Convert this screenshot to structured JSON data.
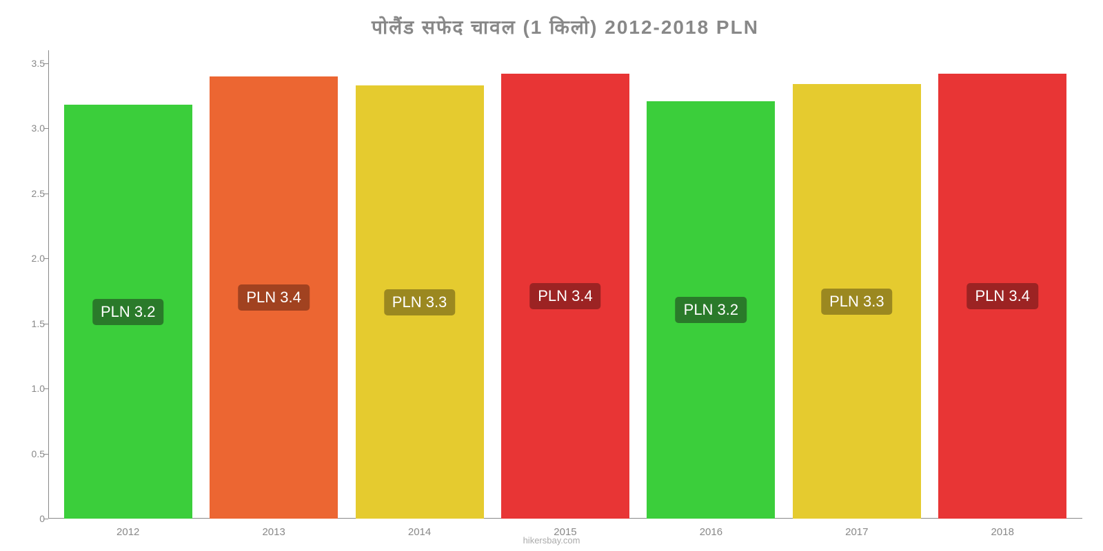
{
  "chart": {
    "type": "bar",
    "title": "पोलैंड सफेद चावल (1 किलो) 2012-2018 PLN",
    "title_color": "#888888",
    "title_fontsize": 28,
    "background_color": "#ffffff",
    "axis_color": "#888888",
    "tick_label_color": "#888888",
    "tick_fontsize": 14,
    "categories": [
      "2012",
      "2013",
      "2014",
      "2015",
      "2016",
      "2017",
      "2018"
    ],
    "values": [
      3.18,
      3.4,
      3.33,
      3.42,
      3.21,
      3.34,
      3.42
    ],
    "bar_labels": [
      "PLN 3.2",
      "PLN 3.4",
      "PLN 3.3",
      "PLN 3.4",
      "PLN 3.2",
      "PLN 3.3",
      "PLN 3.4"
    ],
    "bar_colors": [
      "#3bce3b",
      "#ec6632",
      "#e5cb2f",
      "#e83535",
      "#3bce3b",
      "#e5cb2f",
      "#e83535"
    ],
    "label_bg_colors": [
      "#2a7a2a",
      "#a14220",
      "#9b8820",
      "#9c2323",
      "#2a7a2a",
      "#9b8820",
      "#9c2323"
    ],
    "label_text_color": "#ffffff",
    "label_fontsize": 22,
    "ylim": [
      0,
      3.6
    ],
    "yticks": [
      0,
      0.5,
      1.0,
      1.5,
      2.0,
      2.5,
      3.0,
      3.5
    ],
    "ytick_labels": [
      "0",
      "0.5",
      "1.0",
      "1.5",
      "2.0",
      "2.5",
      "3.0",
      "3.5"
    ],
    "bar_width_pct": 88,
    "attribution": "hikersbay.com",
    "attribution_color": "#aaaaaa"
  }
}
